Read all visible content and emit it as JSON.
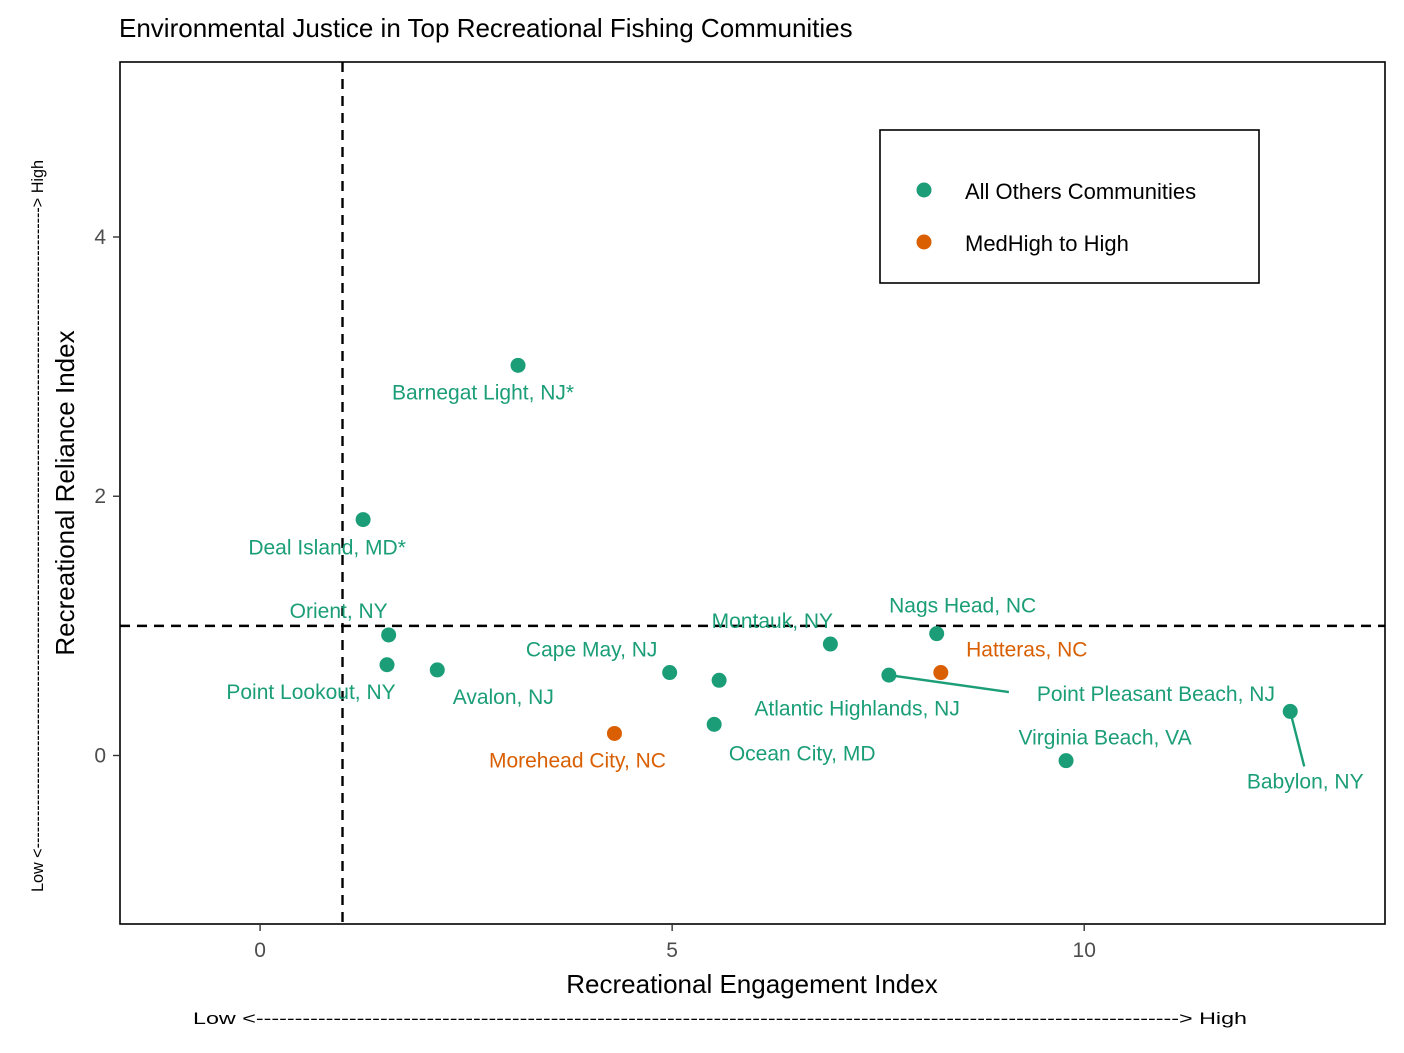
{
  "chart_data": {
    "type": "scatter",
    "title": "Environmental Justice in Top Recreational Fishing Communities",
    "xlabel": "Recreational Engagement Index",
    "ylabel": "Recreational Reliance Index",
    "x_arrow": "Low <-----------------------------------------------------------------------------------------------------------------------> High",
    "y_arrow": "Low <-----------------------------------------------------------------------------------------------------------------------> High",
    "xlim": [
      -1.7,
      13.65
    ],
    "ylim": [
      -1.3,
      5.35
    ],
    "xticks": [
      0,
      5,
      10
    ],
    "yticks": [
      0,
      2,
      4
    ],
    "reference_lines": {
      "x": 1,
      "y": 1
    },
    "grid": false,
    "legend": {
      "placement": "top-right",
      "entries": [
        {
          "label": "All Others Communities",
          "color": "#1b9e77"
        },
        {
          "label": "MedHigh to High",
          "color": "#d95f02"
        }
      ]
    },
    "series": [
      {
        "name": "All Others Communities",
        "color": "#1b9e77",
        "points": [
          {
            "label": "Barnegat Light, NJ*",
            "x": 3.13,
            "y": 3.01
          },
          {
            "label": "Deal Island, MD*",
            "x": 1.25,
            "y": 1.82
          },
          {
            "label": "Orient, NY",
            "x": 1.56,
            "y": 0.93
          },
          {
            "label": "Point Lookout, NY",
            "x": 1.54,
            "y": 0.7
          },
          {
            "label": "Avalon, NJ",
            "x": 2.15,
            "y": 0.66
          },
          {
            "label": "Cape May, NJ",
            "x": 4.97,
            "y": 0.64
          },
          {
            "label": "Atlantic Highlands, NJ",
            "x": 5.57,
            "y": 0.58
          },
          {
            "label": "Ocean City, MD",
            "x": 5.51,
            "y": 0.24
          },
          {
            "label": "Montauk, NY",
            "x": 6.92,
            "y": 0.86
          },
          {
            "label": "Nags Head, NC",
            "x": 8.21,
            "y": 0.94
          },
          {
            "label": "Point Pleasant Beach, NJ",
            "x": 7.63,
            "y": 0.62
          },
          {
            "label": "Virginia Beach, VA",
            "x": 9.78,
            "y": -0.04
          },
          {
            "label": "Babylon, NY",
            "x": 12.5,
            "y": 0.34
          }
        ]
      },
      {
        "name": "MedHigh to High",
        "color": "#d95f02",
        "points": [
          {
            "label": "Morehead City, NC",
            "x": 4.3,
            "y": 0.17
          },
          {
            "label": "Hatteras, NC",
            "x": 8.26,
            "y": 0.64
          }
        ]
      }
    ]
  }
}
